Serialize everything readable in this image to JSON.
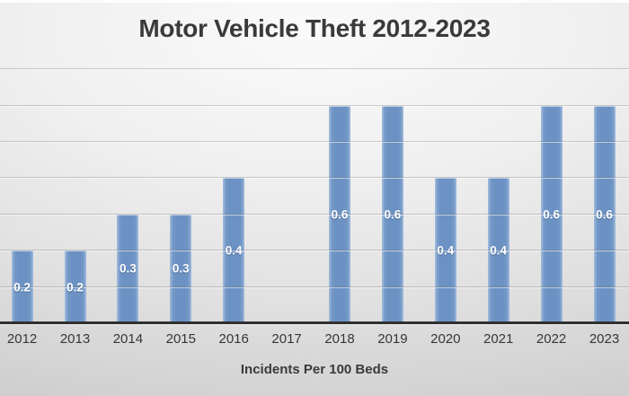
{
  "chart_data": {
    "type": "bar",
    "title": "Motor Vehicle Theft 2012-2023",
    "xlabel": "Incidents Per 100 Beds",
    "ylabel": "",
    "categories": [
      "2012",
      "2013",
      "2014",
      "2015",
      "2016",
      "2017",
      "2018",
      "2019",
      "2020",
      "2021",
      "2022",
      "2023"
    ],
    "values": [
      0.2,
      0.2,
      0.3,
      0.3,
      0.4,
      null,
      0.6,
      0.6,
      0.4,
      0.4,
      0.6,
      0.6
    ],
    "data_labels": [
      "0.2",
      "0.2",
      "0.3",
      "0.3",
      "0.4",
      "",
      "0.6",
      "0.6",
      "0.4",
      "0.4",
      "0.6",
      "0.6"
    ],
    "ylim": [
      0,
      0.7
    ],
    "gridline_step": 0.1,
    "grid": true,
    "legend": false,
    "data_label_position": "center",
    "style": {
      "bar_color": "#6c92c4",
      "data_label_color": "#ffffff",
      "axis_line_color": "#303030",
      "tick_label_color": "#363636",
      "title_color": "#3a3a3a",
      "background_top": "#fafafa",
      "background_bottom": "#c2c2c2"
    }
  }
}
